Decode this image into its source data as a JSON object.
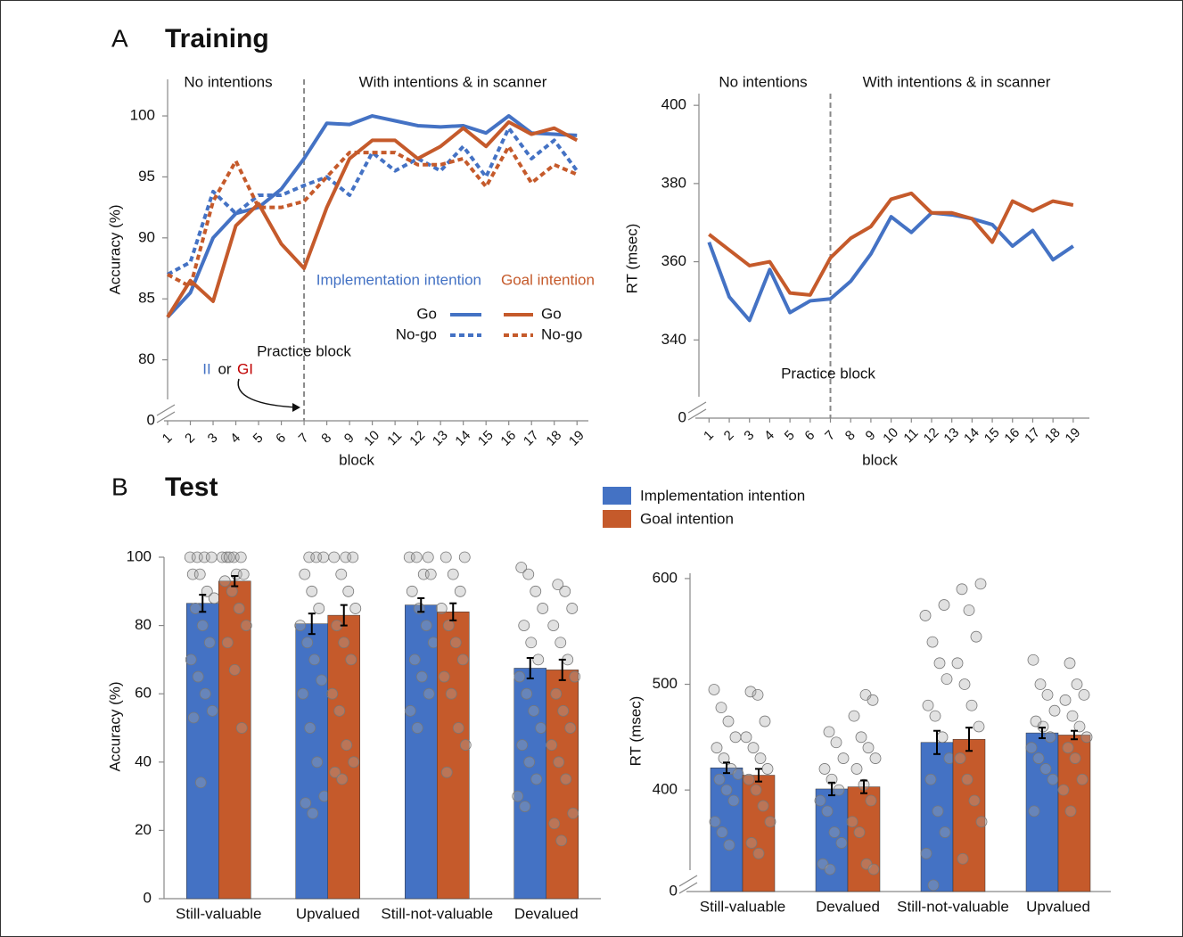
{
  "chart_data": [
    {
      "type": "line",
      "panel": "A",
      "title": "Training",
      "annotations": [
        "No intentions",
        "With intentions & in scanner",
        "Practice block"
      ],
      "markers": [
        "II",
        "or",
        "GI"
      ],
      "xlabel": "block",
      "ylabel": "Accuracy (%)",
      "x": [
        1,
        2,
        3,
        4,
        5,
        6,
        7,
        8,
        9,
        10,
        11,
        12,
        13,
        14,
        15,
        16,
        17,
        18,
        19
      ],
      "xlim": [
        1,
        19.5
      ],
      "ylim": [
        75,
        103
      ],
      "yticks": [
        80,
        85,
        90,
        95,
        100
      ],
      "y_break_tick": 0,
      "series": [
        {
          "group": "Implementation intention",
          "name": "Go",
          "color": "#4472c4",
          "style": "solid",
          "values": [
            83.5,
            85.5,
            90,
            92,
            92.5,
            94,
            96.5,
            99.4,
            99.3,
            100,
            99.6,
            99.2,
            99.1,
            99.2,
            98.6,
            100,
            98.6,
            98.5,
            98.4
          ]
        },
        {
          "group": "Implementation intention",
          "name": "No-go",
          "color": "#4472c4",
          "style": "dotted",
          "values": [
            87,
            88,
            93.8,
            92,
            93.5,
            93.5,
            94.3,
            95,
            93.5,
            97,
            95.5,
            96.5,
            95.5,
            97.5,
            95,
            99,
            96.5,
            98,
            95.5
          ]
        },
        {
          "group": "Goal intention",
          "name": "Go",
          "color": "#c55a2b",
          "style": "solid",
          "values": [
            83.5,
            86.5,
            84.8,
            91,
            92.8,
            89.5,
            87.5,
            92.5,
            96.5,
            98,
            98,
            96.5,
            97.5,
            99,
            97.5,
            99.5,
            98.5,
            99,
            98
          ]
        },
        {
          "group": "Goal intention",
          "name": "No-go",
          "color": "#c55a2b",
          "style": "dotted",
          "values": [
            87,
            86,
            93,
            96.3,
            92.5,
            92.5,
            93,
            95,
            97,
            97,
            97,
            96,
            96,
            96.5,
            94.2,
            97.5,
            94.5,
            96,
            95.2
          ]
        }
      ]
    },
    {
      "type": "line",
      "annotations": [
        "No intentions",
        "With intentions & in scanner",
        "Practice block"
      ],
      "xlabel": "block",
      "ylabel": "RT (msec)",
      "x": [
        1,
        2,
        3,
        4,
        5,
        6,
        7,
        8,
        9,
        10,
        11,
        12,
        13,
        14,
        15,
        16,
        17,
        18,
        19
      ],
      "xlim": [
        0.5,
        19.8
      ],
      "ylim": [
        320,
        403
      ],
      "yticks": [
        340,
        360,
        380,
        400
      ],
      "y_break_tick": 0,
      "series": [
        {
          "color": "#4472c4",
          "style": "solid",
          "values": [
            365,
            351,
            345,
            358,
            347,
            350,
            350.5,
            355,
            362,
            371.5,
            367.5,
            372.5,
            372,
            371,
            369.5,
            364,
            368,
            360.5,
            364
          ]
        },
        {
          "color": "#c55a2b",
          "style": "solid",
          "values": [
            367,
            363,
            359,
            360,
            352,
            351.5,
            361,
            366,
            369,
            376,
            377.5,
            372.5,
            372.5,
            371,
            365,
            375.5,
            373,
            375.5,
            374.5
          ]
        }
      ]
    },
    {
      "type": "bar",
      "panel": "B",
      "title": "Test",
      "ylabel": "Accuracy (%)",
      "categories": [
        "Still-valuable",
        "Upvalued",
        "Still-not-valuable",
        "Devalued"
      ],
      "ylim": [
        0,
        100
      ],
      "yticks": [
        0,
        20,
        40,
        60,
        80,
        100
      ],
      "series": [
        {
          "name": "Implementation intention",
          "color": "#4472c4",
          "values": [
            86.5,
            80.5,
            86,
            67.5
          ],
          "errors": [
            2.5,
            3,
            2,
            3
          ],
          "points": [
            [
              100,
              100,
              100,
              100,
              95,
              95,
              90,
              88,
              85,
              80,
              75,
              70,
              65,
              60,
              55,
              53,
              34
            ],
            [
              100,
              100,
              100,
              95,
              90,
              85,
              80,
              75,
              70,
              64,
              60,
              50,
              40,
              30,
              28,
              25
            ],
            [
              100,
              100,
              100,
              95,
              95,
              90,
              85,
              80,
              75,
              70,
              65,
              60,
              55,
              50
            ],
            [
              97,
              95,
              90,
              85,
              80,
              75,
              70,
              65,
              60,
              55,
              50,
              45,
              40,
              35,
              30,
              27
            ]
          ]
        },
        {
          "name": "Goal intention",
          "color": "#c55a2b",
          "values": [
            93,
            83,
            84,
            67
          ],
          "errors": [
            1.5,
            3,
            2.5,
            3
          ],
          "points": [
            [
              100,
              100,
              100,
              100,
              100,
              95,
              95,
              93,
              90,
              85,
              80,
              75,
              67,
              50
            ],
            [
              100,
              100,
              100,
              95,
              90,
              85,
              80,
              75,
              70,
              60,
              55,
              45,
              40,
              37,
              35
            ],
            [
              100,
              100,
              95,
              90,
              85,
              80,
              75,
              70,
              65,
              60,
              50,
              45,
              37
            ],
            [
              92,
              90,
              85,
              80,
              75,
              70,
              65,
              60,
              55,
              50,
              45,
              40,
              35,
              25,
              22,
              17
            ]
          ]
        }
      ]
    },
    {
      "type": "bar",
      "ylabel": "RT (msec)",
      "categories": [
        "Still-valuable",
        "Devalued",
        "Still-not-valuable",
        "Upvalued"
      ],
      "ylim": [
        304,
        605
      ],
      "yticks": [
        400,
        500,
        600
      ],
      "y_break_tick": 0,
      "series": [
        {
          "color": "#4472c4",
          "values": [
            421,
            401,
            445,
            454
          ],
          "errors": [
            5,
            6,
            11,
            5
          ],
          "points": [
            [
              495,
              478,
              465,
              450,
              440,
              430,
              420,
              415,
              410,
              400,
              390,
              370,
              360,
              348
            ],
            [
              455,
              445,
              430,
              420,
              410,
              400,
              390,
              380,
              360,
              350,
              330,
              325
            ],
            [
              575,
              565,
              540,
              520,
              505,
              480,
              470,
              450,
              430,
              410,
              380,
              360,
              340,
              310
            ],
            [
              523,
              500,
              490,
              475,
              465,
              460,
              450,
              440,
              430,
              420,
              410,
              380
            ]
          ]
        },
        {
          "color": "#c55a2b",
          "values": [
            414,
            403,
            448,
            452
          ],
          "errors": [
            6,
            6,
            11,
            4
          ],
          "points": [
            [
              493,
              490,
              465,
              450,
              440,
              430,
              420,
              410,
              400,
              385,
              370,
              350,
              340
            ],
            [
              490,
              485,
              470,
              450,
              440,
              430,
              420,
              405,
              390,
              370,
              360,
              330,
              325
            ],
            [
              595,
              590,
              570,
              545,
              520,
              500,
              480,
              460,
              430,
              410,
              390,
              370,
              335
            ],
            [
              520,
              500,
              490,
              485,
              470,
              460,
              450,
              440,
              430,
              410,
              400,
              380
            ]
          ]
        }
      ]
    }
  ]
}
